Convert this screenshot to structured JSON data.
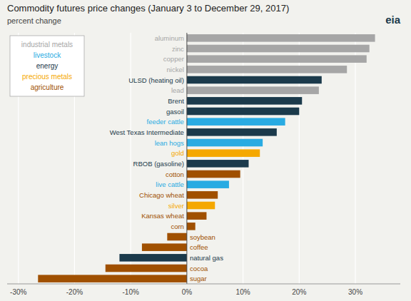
{
  "chart_data": {
    "type": "bar",
    "orientation": "horizontal",
    "title": "Commodity futures price changes (January 3 to December 29, 2017)",
    "subtitle": "percent change",
    "annotations": [
      "eia"
    ],
    "categories": [
      "aluminum",
      "zinc",
      "copper",
      "nickel",
      "ULSD (heating oil)",
      "lead",
      "Brent",
      "gasoil",
      "feeder cattle",
      "West Texas Intermediate",
      "lean hogs",
      "gold",
      "RBOB (gasoline)",
      "cotton",
      "live cattle",
      "Chicago wheat",
      "silver",
      "Kansas wheat",
      "corn",
      "soybean",
      "coffee",
      "natural gas",
      "cocoa",
      "sugar"
    ],
    "series": [
      {
        "name": "industrial metals",
        "color": "#a6a6a6",
        "values": [
          33.5,
          32.5,
          32.0,
          28.5,
          null,
          23.5,
          null,
          null,
          null,
          null,
          null,
          null,
          null,
          null,
          null,
          null,
          null,
          null,
          null,
          null,
          null,
          null,
          null,
          null
        ]
      },
      {
        "name": "livestock",
        "color": "#29abe2",
        "values": [
          null,
          null,
          null,
          null,
          null,
          null,
          null,
          null,
          17.5,
          null,
          13.5,
          null,
          null,
          null,
          7.5,
          null,
          null,
          null,
          null,
          null,
          null,
          null,
          null,
          null
        ]
      },
      {
        "name": "energy",
        "color": "#1b3a4b",
        "values": [
          null,
          null,
          null,
          null,
          24.0,
          null,
          20.5,
          20.0,
          null,
          16.0,
          null,
          null,
          11.0,
          null,
          null,
          null,
          null,
          null,
          null,
          null,
          null,
          -12.0,
          null,
          null
        ]
      },
      {
        "name": "precious metals",
        "color": "#f5a800",
        "values": [
          null,
          null,
          null,
          null,
          null,
          null,
          null,
          null,
          null,
          null,
          null,
          13.0,
          null,
          null,
          null,
          null,
          5.0,
          null,
          null,
          null,
          null,
          null,
          null,
          null
        ]
      },
      {
        "name": "agriculture",
        "color": "#a05000",
        "values": [
          null,
          null,
          null,
          null,
          null,
          null,
          null,
          null,
          null,
          null,
          null,
          null,
          null,
          9.5,
          null,
          5.5,
          null,
          3.5,
          1.5,
          -3.5,
          -8.0,
          null,
          -14.5,
          -26.5
        ]
      }
    ],
    "xlim": [
      -32,
      38
    ],
    "xticks": [
      {
        "value": -30,
        "label": "-30%"
      },
      {
        "value": -20,
        "label": "-20%"
      },
      {
        "value": -10,
        "label": "-10%"
      },
      {
        "value": 0,
        "label": "0%"
      },
      {
        "value": 10,
        "label": "10%"
      },
      {
        "value": 20,
        "label": "20%"
      },
      {
        "value": 30,
        "label": "30%"
      }
    ],
    "grid": true,
    "legend": "upper left"
  }
}
